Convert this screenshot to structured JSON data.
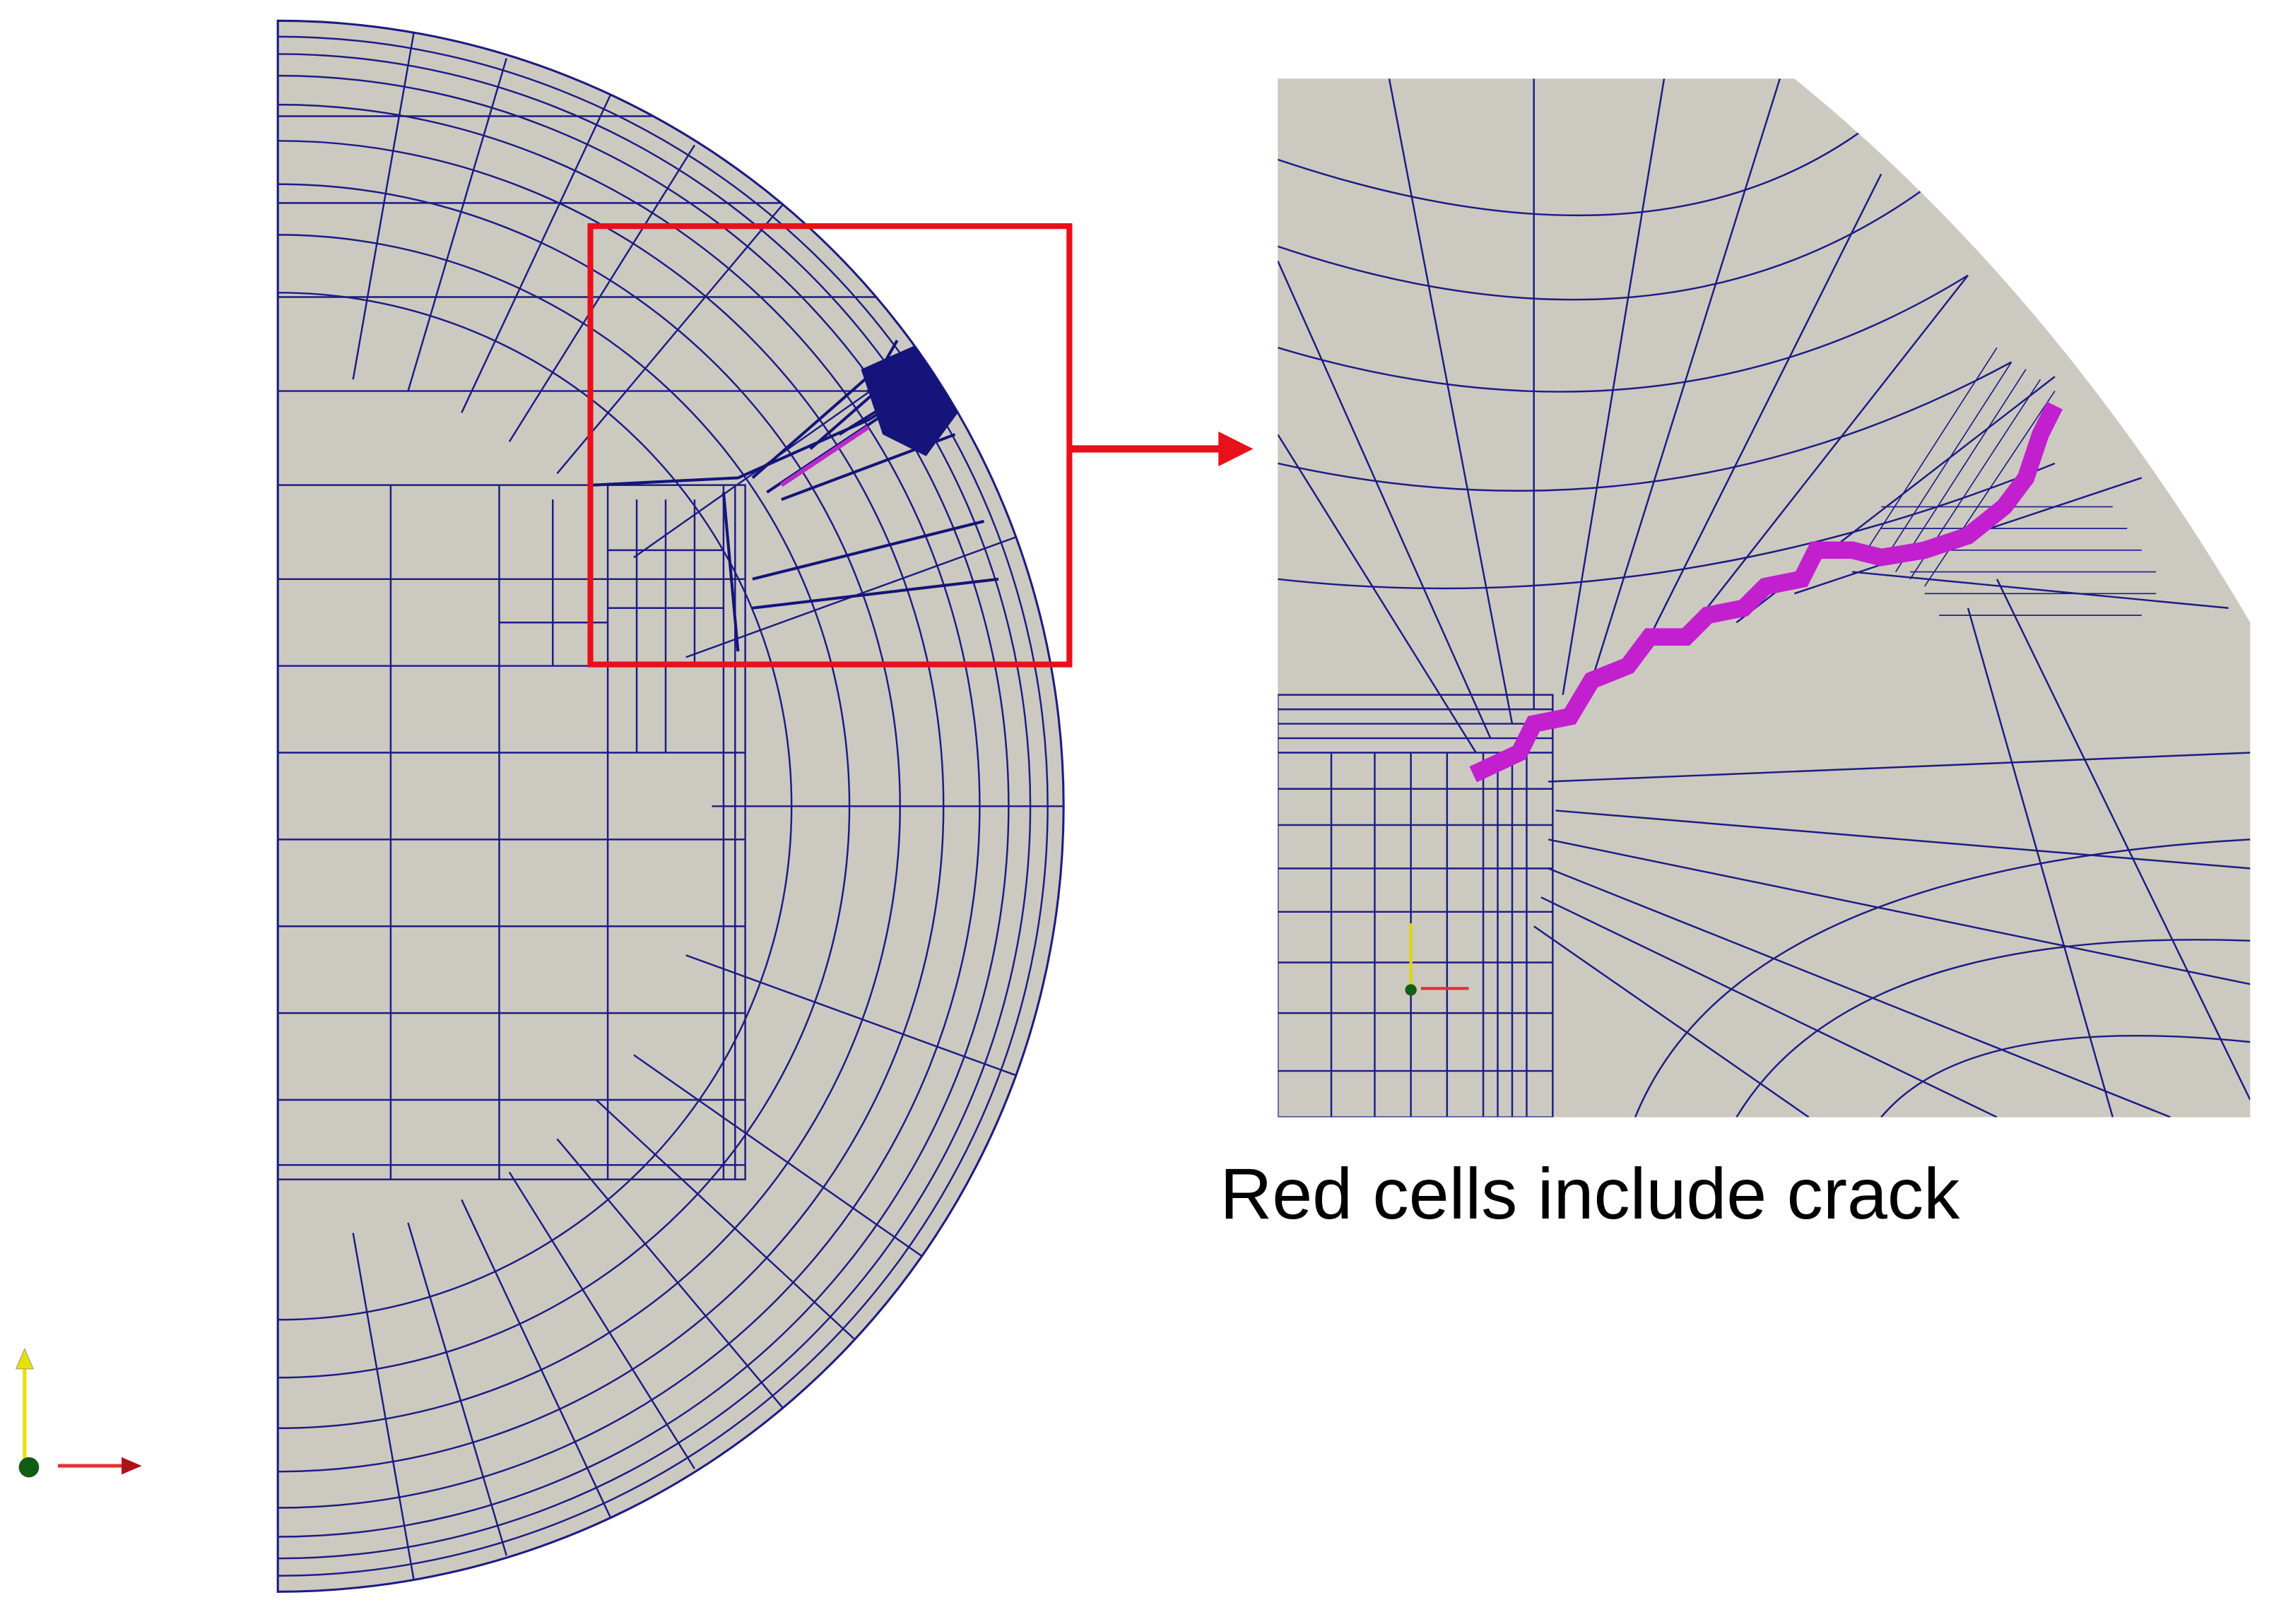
{
  "caption": "Red cells include crack"
}
